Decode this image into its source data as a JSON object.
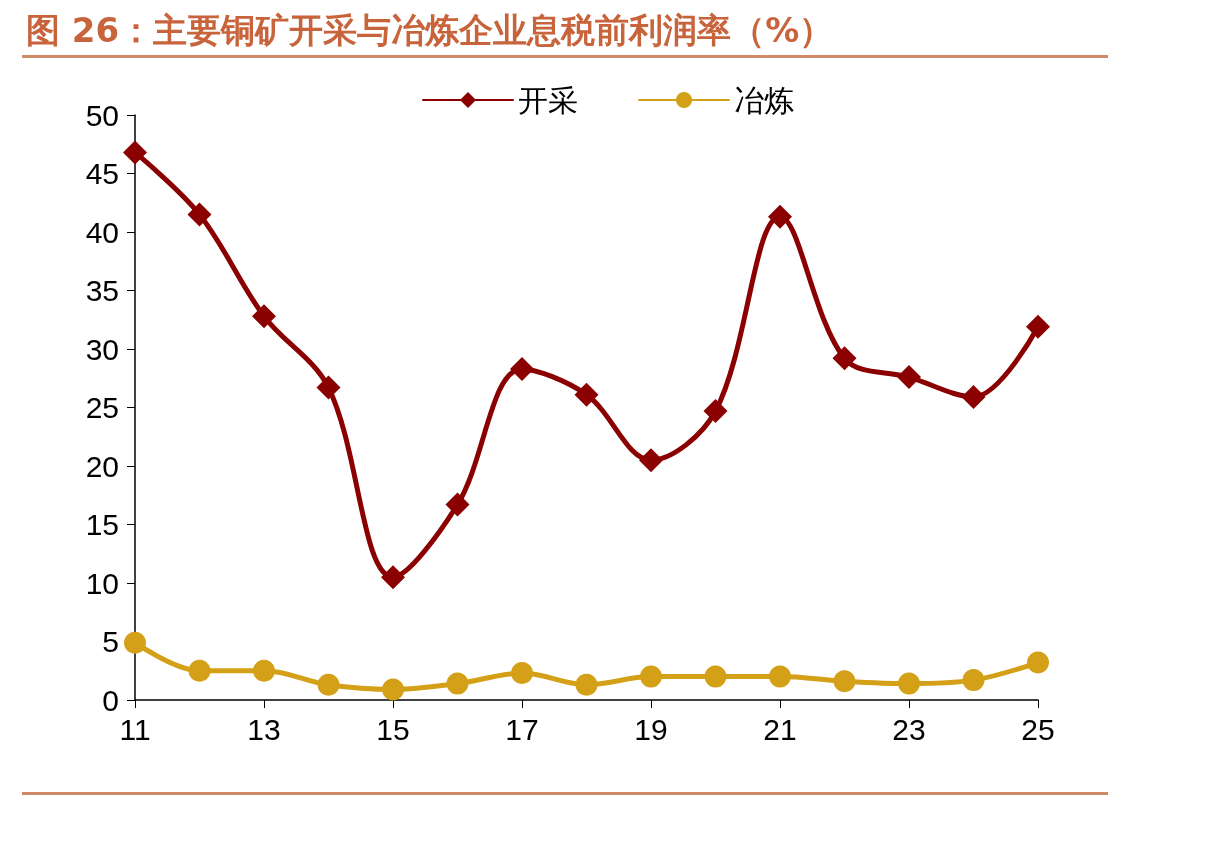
{
  "chart_data": {
    "type": "line",
    "title": "图 26：主要铜矿开采与冶炼企业息税前利润率（%）",
    "x": [
      11,
      12,
      13,
      14,
      15,
      16,
      17,
      18,
      19,
      20,
      21,
      22,
      23,
      24,
      25
    ],
    "series": [
      {
        "name": "开采",
        "color": "#8b0000",
        "marker": "diamond",
        "values": [
          46.8,
          41.5,
          32.8,
          26.7,
          10.5,
          16.7,
          28.3,
          26.1,
          20.5,
          24.7,
          41.3,
          29.2,
          27.6,
          25.9,
          31.9
        ]
      },
      {
        "name": "冶炼",
        "color": "#d4a017",
        "marker": "circle",
        "values": [
          4.9,
          2.5,
          2.5,
          1.3,
          0.9,
          1.4,
          2.3,
          1.3,
          2.0,
          2.0,
          2.0,
          1.6,
          1.4,
          1.7,
          3.2
        ]
      }
    ],
    "xlim": [
      11,
      25
    ],
    "xticks": [
      11,
      13,
      15,
      17,
      19,
      21,
      23,
      25
    ],
    "ylim": [
      0,
      50
    ],
    "yticks": [
      0,
      5,
      10,
      15,
      20,
      25,
      30,
      35,
      40,
      45,
      50
    ],
    "grid": false,
    "legend": "top",
    "line_style": "solid"
  }
}
